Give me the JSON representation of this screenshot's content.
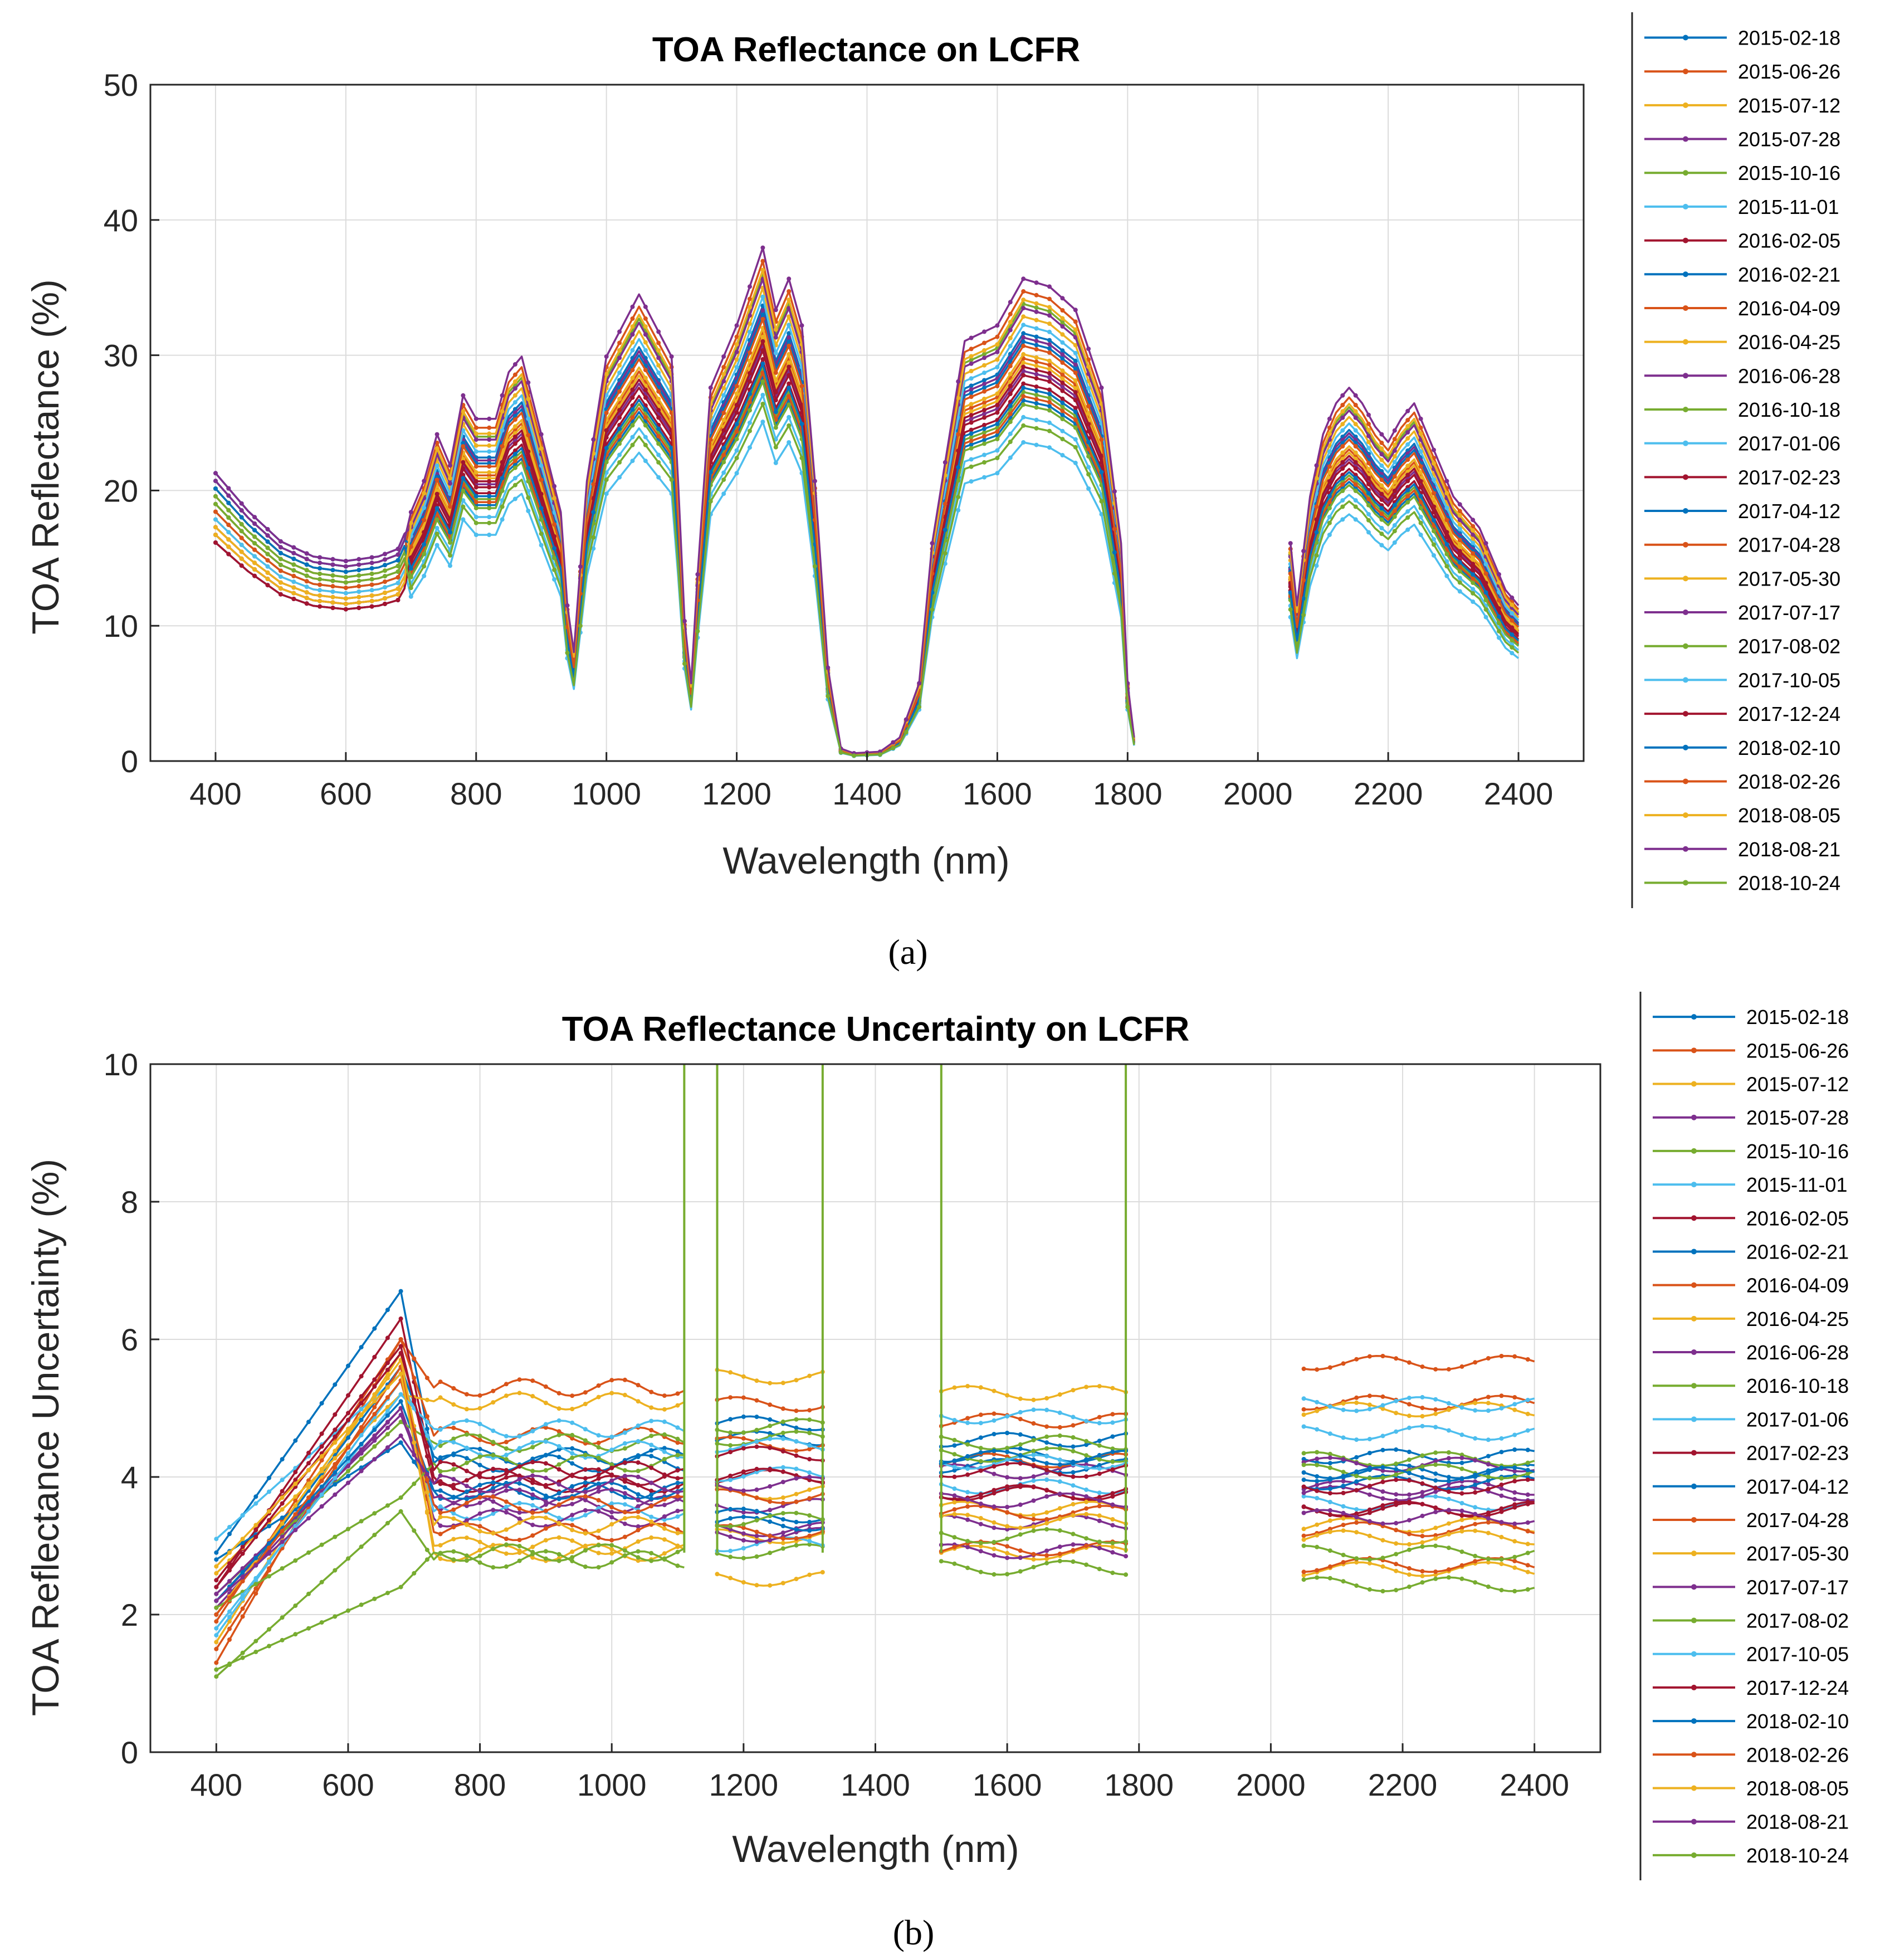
{
  "legend_dates": [
    "2015-02-18",
    "2015-06-26",
    "2015-07-12",
    "2015-07-28",
    "2015-10-16",
    "2015-11-01",
    "2016-02-05",
    "2016-02-21",
    "2016-04-09",
    "2016-04-25",
    "2016-06-28",
    "2016-10-18",
    "2017-01-06",
    "2017-02-23",
    "2017-04-12",
    "2017-04-28",
    "2017-05-30",
    "2017-07-17",
    "2017-08-02",
    "2017-10-05",
    "2017-12-24",
    "2018-02-10",
    "2018-02-26",
    "2018-08-05",
    "2018-08-21",
    "2018-10-24"
  ],
  "series_colors": [
    "#0072BD",
    "#D95319",
    "#EDB120",
    "#7E2F8E",
    "#77AC30",
    "#4DBEEE",
    "#A2142F"
  ],
  "chart_data": [
    {
      "type": "line",
      "title": "TOA Reflectance on LCFR",
      "xlabel": "Wavelength (nm)",
      "ylabel": "TOA Reflectance (%)",
      "xlim": [
        300,
        2500
      ],
      "ylim": [
        0,
        50
      ],
      "xticks": [
        400,
        600,
        800,
        1000,
        1200,
        1400,
        1600,
        1800,
        2000,
        2200,
        2400
      ],
      "yticks": [
        0,
        10,
        20,
        30,
        40,
        50
      ],
      "grid": true,
      "legend_position": "outside-right",
      "caption": "(a)",
      "mean_profile": {
        "x": [
          400,
          450,
          500,
          550,
          600,
          650,
          680,
          700,
          720,
          740,
          760,
          780,
          800,
          830,
          850,
          870,
          900,
          930,
          940,
          950,
          970,
          1000,
          1050,
          1100,
          1110,
          1120,
          1130,
          1140,
          1160,
          1200,
          1240,
          1260,
          1280,
          1300,
          1320,
          1340,
          1360,
          1380,
          1420,
          1450,
          1480,
          1500,
          1550,
          1600,
          1640,
          1680,
          1720,
          1760,
          1790,
          1800,
          1810
        ],
        "y": [
          19,
          16.5,
          14.5,
          13.5,
          13.2,
          13.5,
          14,
          16,
          18,
          21,
          19,
          23.5,
          22,
          22,
          25,
          26,
          21,
          16,
          10,
          7,
          18,
          26,
          30,
          26,
          18,
          9,
          5,
          12,
          24,
          28,
          33,
          29,
          31,
          28,
          18,
          6,
          0.8,
          0.5,
          0.6,
          1.5,
          5,
          14,
          27,
          28,
          31,
          30.5,
          29,
          24,
          14,
          5,
          1.5
        ]
      },
      "segment2": {
        "x": [
          2050,
          2060,
          2080,
          2100,
          2120,
          2140,
          2160,
          2180,
          2200,
          2220,
          2240,
          2260,
          2280,
          2300,
          2320,
          2340,
          2360,
          2380,
          2400
        ],
        "y": [
          14,
          10,
          17,
          21,
          23,
          24,
          23,
          21.5,
          20.5,
          22,
          23,
          21,
          19,
          17,
          16,
          15,
          13,
          11,
          10
        ]
      },
      "spread_per_series": [
        1.02,
        0.96,
        1.06,
        0.93,
        1.09,
        0.82,
        0.9,
        0.86,
        1.12,
        0.95,
        1.01,
        0.88,
        1.04,
        0.92,
        1.0,
        0.87,
        0.97,
        1.08,
        0.85,
        0.76,
        0.94,
        0.89,
        0.99,
        1.1,
        1.15,
        0.8
      ]
    },
    {
      "type": "line",
      "title": "TOA Reflectance Uncertainty on LCFR",
      "xlabel": "Wavelength (nm)",
      "ylabel": "TOA Reflectance Uncertainty (%)",
      "xlim": [
        300,
        2500
      ],
      "ylim": [
        0,
        10
      ],
      "xticks": [
        400,
        600,
        800,
        1000,
        1200,
        1400,
        1600,
        1800,
        2000,
        2200,
        2400
      ],
      "yticks": [
        0,
        2,
        4,
        6,
        8,
        10
      ],
      "grid": true,
      "legend_position": "outside-right",
      "caption": "(b)",
      "segments": [
        [
          400,
          1110
        ],
        [
          1160,
          1320
        ],
        [
          1500,
          1780
        ],
        [
          2050,
          2400
        ]
      ],
      "spike_x": [
        1110,
        1160,
        1320,
        1500,
        1780
      ],
      "start_value": [
        2.9,
        1.3,
        1.6,
        2.2,
        1.1,
        3.1,
        2.4,
        2.0,
        1.9,
        2.6,
        2.1,
        2.3,
        1.7,
        2.5,
        2.8,
        1.5,
        2.0,
        2.3,
        2.1,
        1.8,
        2.4,
        2.2,
        2.0,
        2.7,
        2.2,
        1.2
      ],
      "peak_value": [
        6.7,
        6.0,
        5.8,
        5.0,
        3.5,
        5.5,
        6.3,
        5.6,
        6.0,
        5.2,
        5.0,
        4.8,
        5.4,
        5.9,
        4.5,
        5.6,
        5.7,
        4.9,
        3.7,
        5.2,
        5.8,
        5.1,
        5.4,
        5.5,
        4.6,
        2.4
      ],
      "plateau_value": [
        4.2,
        5.3,
        2.9,
        3.6,
        2.8,
        3.5,
        4.0,
        4.3,
        4.6,
        5.1,
        3.4,
        4.5,
        4.4,
        3.9,
        3.8,
        3.2,
        3.3,
        3.7,
        4.2,
        4.7,
        4.1,
        3.8,
        3.6,
        3.0,
        3.9,
        2.9
      ]
    }
  ]
}
